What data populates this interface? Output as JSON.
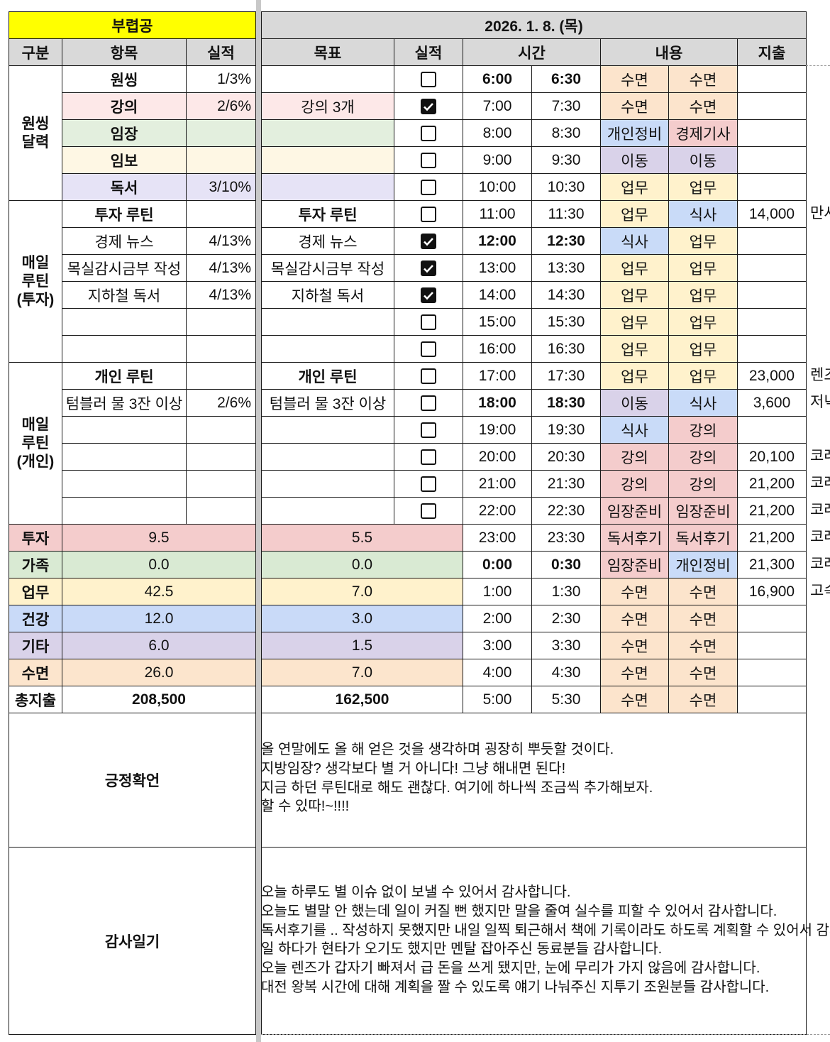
{
  "left": {
    "title": "부렵공",
    "title_color": "#ffff00",
    "headers": [
      "구분",
      "항목",
      "실적"
    ],
    "groups": [
      {
        "label": "원씽\n달력",
        "rows": [
          {
            "item": "원씽",
            "result": "1/3%",
            "bold": true,
            "color": "#ffffff"
          },
          {
            "item": "강의",
            "result": "2/6%",
            "bold": true,
            "color": "#fde8e8"
          },
          {
            "item": "임장",
            "result": "",
            "bold": true,
            "color": "#e3efde"
          },
          {
            "item": "임보",
            "result": "",
            "bold": true,
            "color": "#fef7e4"
          },
          {
            "item": "독서",
            "result": "3/10%",
            "bold": true,
            "color": "#e6e3f6"
          }
        ]
      },
      {
        "label": "매일\n루틴\n(투자)",
        "rows": [
          {
            "item": "투자 루틴",
            "result": "",
            "bold": true
          },
          {
            "item": "경제 뉴스",
            "result": "4/13%"
          },
          {
            "item": "목실감시금부 작성",
            "result": "4/13%"
          },
          {
            "item": "지하철 독서",
            "result": "4/13%"
          },
          {
            "item": "",
            "result": ""
          },
          {
            "item": "",
            "result": ""
          }
        ]
      },
      {
        "label": "매일\n루틴\n(개인)",
        "rows": [
          {
            "item": "개인 루틴",
            "result": "",
            "bold": true
          },
          {
            "item": "텀블러 물 3잔 이상",
            "result": "2/6%"
          },
          {
            "item": "",
            "result": ""
          },
          {
            "item": "",
            "result": ""
          },
          {
            "item": "",
            "result": ""
          },
          {
            "item": "",
            "result": ""
          }
        ]
      }
    ]
  },
  "right": {
    "date": "2026. 1. 8. (목)",
    "headers": [
      "목표",
      "실적",
      "시간",
      "내용",
      "지출"
    ],
    "goals": [
      {
        "goal": "",
        "checked": false,
        "color": "#ffffff"
      },
      {
        "goal": "강의 3개",
        "checked": true,
        "color": "#fde8e8"
      },
      {
        "goal": "",
        "checked": false,
        "color": "#e3efde"
      },
      {
        "goal": "",
        "checked": false,
        "color": "#fef7e4"
      },
      {
        "goal": "",
        "checked": false,
        "color": "#e6e3f6"
      },
      {
        "goal": "투자 루틴",
        "checked": false,
        "bold": true
      },
      {
        "goal": "경제 뉴스",
        "checked": true
      },
      {
        "goal": "목실감시금부 작성",
        "checked": true
      },
      {
        "goal": "지하철 독서",
        "checked": true
      },
      {
        "goal": "",
        "checked": false
      },
      {
        "goal": "",
        "checked": false
      },
      {
        "goal": "개인 루틴",
        "checked": false,
        "bold": true
      },
      {
        "goal": "텀블러 물 3잔 이상",
        "checked": false
      },
      {
        "goal": "",
        "checked": false
      },
      {
        "goal": "",
        "checked": false
      },
      {
        "goal": "",
        "checked": false
      },
      {
        "goal": "",
        "checked": false
      }
    ],
    "schedule": [
      {
        "start": "6:00",
        "end": "6:30",
        "a": "수면",
        "b": "수면",
        "expense": "",
        "note": "",
        "bold": true
      },
      {
        "start": "7:00",
        "end": "7:30",
        "a": "수면",
        "b": "수면",
        "expense": "",
        "note": ""
      },
      {
        "start": "8:00",
        "end": "8:30",
        "a": "개인정비",
        "b": "경제기사",
        "expense": "",
        "note": ""
      },
      {
        "start": "9:00",
        "end": "9:30",
        "a": "이동",
        "b": "이동",
        "expense": "",
        "note": ""
      },
      {
        "start": "10:00",
        "end": "10:30",
        "a": "업무",
        "b": "업무",
        "expense": "",
        "note": ""
      },
      {
        "start": "11:00",
        "end": "11:30",
        "a": "업무",
        "b": "식사",
        "expense": "14,000",
        "note": "만사"
      },
      {
        "start": "12:00",
        "end": "12:30",
        "a": "식사",
        "b": "업무",
        "expense": "",
        "note": "",
        "bold": true
      },
      {
        "start": "13:00",
        "end": "13:30",
        "a": "업무",
        "b": "업무",
        "expense": "",
        "note": ""
      },
      {
        "start": "14:00",
        "end": "14:30",
        "a": "업무",
        "b": "업무",
        "expense": "",
        "note": ""
      },
      {
        "start": "15:00",
        "end": "15:30",
        "a": "업무",
        "b": "업무",
        "expense": "",
        "note": ""
      },
      {
        "start": "16:00",
        "end": "16:30",
        "a": "업무",
        "b": "업무",
        "expense": "",
        "note": ""
      },
      {
        "start": "17:00",
        "end": "17:30",
        "a": "업무",
        "b": "업무",
        "expense": "23,000",
        "note": "렌즈"
      },
      {
        "start": "18:00",
        "end": "18:30",
        "a": "이동",
        "b": "식사",
        "expense": "3,600",
        "note": "저녁",
        "bold": true
      },
      {
        "start": "19:00",
        "end": "19:30",
        "a": "식사",
        "b": "강의",
        "expense": "",
        "note": ""
      },
      {
        "start": "20:00",
        "end": "20:30",
        "a": "강의",
        "b": "강의",
        "expense": "20,100",
        "note": "코레"
      },
      {
        "start": "21:00",
        "end": "21:30",
        "a": "강의",
        "b": "강의",
        "expense": "21,200",
        "note": "코레"
      },
      {
        "start": "22:00",
        "end": "22:30",
        "a": "임장준비",
        "b": "임장준비",
        "expense": "21,200",
        "note": "코레"
      },
      {
        "start": "23:00",
        "end": "23:30",
        "a": "독서후기",
        "b": "독서후기",
        "expense": "21,200",
        "note": "코레"
      },
      {
        "start": "0:00",
        "end": "0:30",
        "a": "임장준비",
        "b": "개인정비",
        "expense": "21,300",
        "note": "코레",
        "bold": true
      },
      {
        "start": "1:00",
        "end": "1:30",
        "a": "수면",
        "b": "수면",
        "expense": "16,900",
        "note": "고속"
      },
      {
        "start": "2:00",
        "end": "2:30",
        "a": "수면",
        "b": "수면",
        "expense": "",
        "note": ""
      },
      {
        "start": "3:00",
        "end": "3:30",
        "a": "수면",
        "b": "수면",
        "expense": "",
        "note": ""
      },
      {
        "start": "4:00",
        "end": "4:30",
        "a": "수면",
        "b": "수면",
        "expense": "",
        "note": ""
      },
      {
        "start": "5:00",
        "end": "5:30",
        "a": "수면",
        "b": "수면",
        "expense": "",
        "note": ""
      }
    ],
    "activity_colors": {
      "수면": "#fce4cc",
      "업무": "#fff2cc",
      "식사": "#c9dbf8",
      "이동": "#d9d2e9",
      "강의": "#f4cccc",
      "개인정비": "#c9dbf8",
      "경제기사": "#f4cccc",
      "임장준비": "#f4cccc",
      "독서후기": "#f4cccc"
    }
  },
  "summary": {
    "rows": [
      {
        "label": "투자",
        "actual": "9.5",
        "target": "5.5",
        "color": "#f4cccc"
      },
      {
        "label": "가족",
        "actual": "0.0",
        "target": "0.0",
        "color": "#d9ead3"
      },
      {
        "label": "업무",
        "actual": "42.5",
        "target": "7.0",
        "color": "#fff2cc"
      },
      {
        "label": "건강",
        "actual": "12.0",
        "target": "3.0",
        "color": "#c9daf8"
      },
      {
        "label": "기타",
        "actual": "6.0",
        "target": "1.5",
        "color": "#d9d2e9"
      },
      {
        "label": "수면",
        "actual": "26.0",
        "target": "7.0",
        "color": "#fce5cd"
      }
    ],
    "total": {
      "label": "총지출",
      "actual": "208,500",
      "target": "162,500"
    }
  },
  "affirmation": {
    "label": "긍정확언",
    "text": "올 연말에도 올 해 얻은 것을 생각하며 굉장히 뿌듯할 것이다.\n지방임장? 생각보다 별 거 아니다! 그냥 해내면 된다!\n지금 하던 루틴대로 해도 괜찮다. 여기에 하나씩 조금씩 추가해보자.\n할 수 있따!~!!!!"
  },
  "gratitude": {
    "label": "감사일기",
    "text": "오늘 하루도 별 이슈 없이 보낼 수 있어서 감사합니다.\n오늘도 별말 안 했는데 일이 커질 뻔 했지만 말을 줄여 실수를 피할 수 있어서 감사합니다.\n독서후기를 .. 작성하지 못했지만 내일 일찍 퇴근해서 책에 기록이라도 하도록 계획할 수 있어서 감사합니다.\n일 하다가 현타가 오기도 했지만 멘탈 잡아주신 동료분들 감사합니다.\n오늘 렌즈가 갑자기 빠져서 급 돈을 쓰게 됐지만, 눈에 무리가 가지 않음에 감사합니다.\n대전 왕복 시간에 대해 계획을 짤 수 있도록 얘기 나눠주신 지투기 조원분들 감사합니다."
  }
}
